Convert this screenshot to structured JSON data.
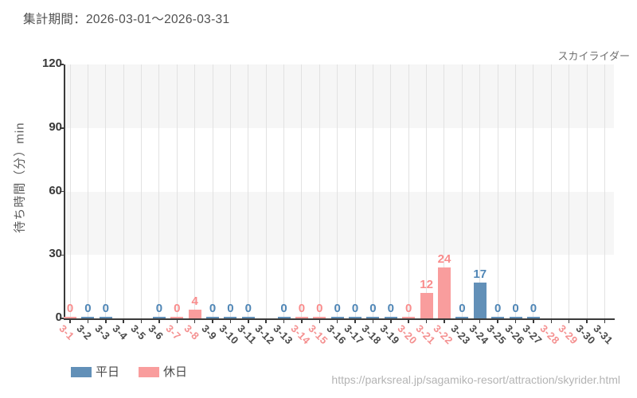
{
  "header": {
    "period_label": "集計期間：2026-03-01～2026-03-31"
  },
  "attraction_label": "スカイライダー",
  "legend": {
    "items": [
      {
        "label": "平日",
        "key": "weekday"
      },
      {
        "label": "休日",
        "key": "holiday"
      }
    ]
  },
  "footer": {
    "url": "https://parksreal.jp/sagamiko-resort/attraction/skyrider.html"
  },
  "colors": {
    "weekday_bar": "#6290b8",
    "holiday_bar": "#f99d9d",
    "weekday_value_label": "#4f86b6",
    "holiday_value_label": "#f98c8c",
    "weekday_tick_label": "#4a4a4a",
    "holiday_tick_label": "#f49090",
    "band_gray": "#f6f6f6",
    "gridline": "#e2e2e2",
    "axis": "#3a3a3a",
    "y_tick_label": "#383838"
  },
  "chart_data": {
    "type": "bar",
    "title": "集計期間：2026-03-01～2026-03-31",
    "subtitle": "スカイライダー",
    "xlabel": "",
    "ylabel": "待ち時間（分）min",
    "ylim": [
      0,
      120
    ],
    "yticks": [
      0,
      30,
      60,
      90,
      120
    ],
    "x_tick_rotation_deg": 45,
    "grid": "vertical-lines-and-horizontal-bands",
    "legend_position": "bottom-left",
    "legend": [
      "平日",
      "休日"
    ],
    "categories": [
      "3-1",
      "3-2",
      "3-3",
      "3-4",
      "3-5",
      "3-6",
      "3-7",
      "3-8",
      "3-9",
      "3-10",
      "3-11",
      "3-12",
      "3-13",
      "3-14",
      "3-15",
      "3-16",
      "3-17",
      "3-18",
      "3-19",
      "3-20",
      "3-21",
      "3-22",
      "3-23",
      "3-24",
      "3-25",
      "3-26",
      "3-27",
      "3-28",
      "3-29",
      "3-30",
      "3-31"
    ],
    "points": [
      {
        "label": "3-1",
        "type": "holiday",
        "value": 0
      },
      {
        "label": "3-2",
        "type": "weekday",
        "value": 0
      },
      {
        "label": "3-3",
        "type": "weekday",
        "value": 0
      },
      {
        "label": "3-4",
        "type": "weekday",
        "value": null
      },
      {
        "label": "3-5",
        "type": "weekday",
        "value": null
      },
      {
        "label": "3-6",
        "type": "weekday",
        "value": 0
      },
      {
        "label": "3-7",
        "type": "holiday",
        "value": 0
      },
      {
        "label": "3-8",
        "type": "holiday",
        "value": 4
      },
      {
        "label": "3-9",
        "type": "weekday",
        "value": 0
      },
      {
        "label": "3-10",
        "type": "weekday",
        "value": 0
      },
      {
        "label": "3-11",
        "type": "weekday",
        "value": 0
      },
      {
        "label": "3-12",
        "type": "weekday",
        "value": null
      },
      {
        "label": "3-13",
        "type": "weekday",
        "value": 0
      },
      {
        "label": "3-14",
        "type": "holiday",
        "value": 0
      },
      {
        "label": "3-15",
        "type": "holiday",
        "value": 0
      },
      {
        "label": "3-16",
        "type": "weekday",
        "value": 0
      },
      {
        "label": "3-17",
        "type": "weekday",
        "value": 0
      },
      {
        "label": "3-18",
        "type": "weekday",
        "value": 0
      },
      {
        "label": "3-19",
        "type": "weekday",
        "value": 0
      },
      {
        "label": "3-20",
        "type": "holiday",
        "value": 0
      },
      {
        "label": "3-21",
        "type": "holiday",
        "value": 12
      },
      {
        "label": "3-22",
        "type": "holiday",
        "value": 24
      },
      {
        "label": "3-23",
        "type": "weekday",
        "value": 0
      },
      {
        "label": "3-24",
        "type": "weekday",
        "value": 17
      },
      {
        "label": "3-25",
        "type": "weekday",
        "value": 0
      },
      {
        "label": "3-26",
        "type": "weekday",
        "value": 0
      },
      {
        "label": "3-27",
        "type": "weekday",
        "value": 0
      },
      {
        "label": "3-28",
        "type": "holiday",
        "value": null
      },
      {
        "label": "3-29",
        "type": "holiday",
        "value": null
      },
      {
        "label": "3-30",
        "type": "weekday",
        "value": null
      },
      {
        "label": "3-31",
        "type": "weekday",
        "value": null
      }
    ]
  }
}
